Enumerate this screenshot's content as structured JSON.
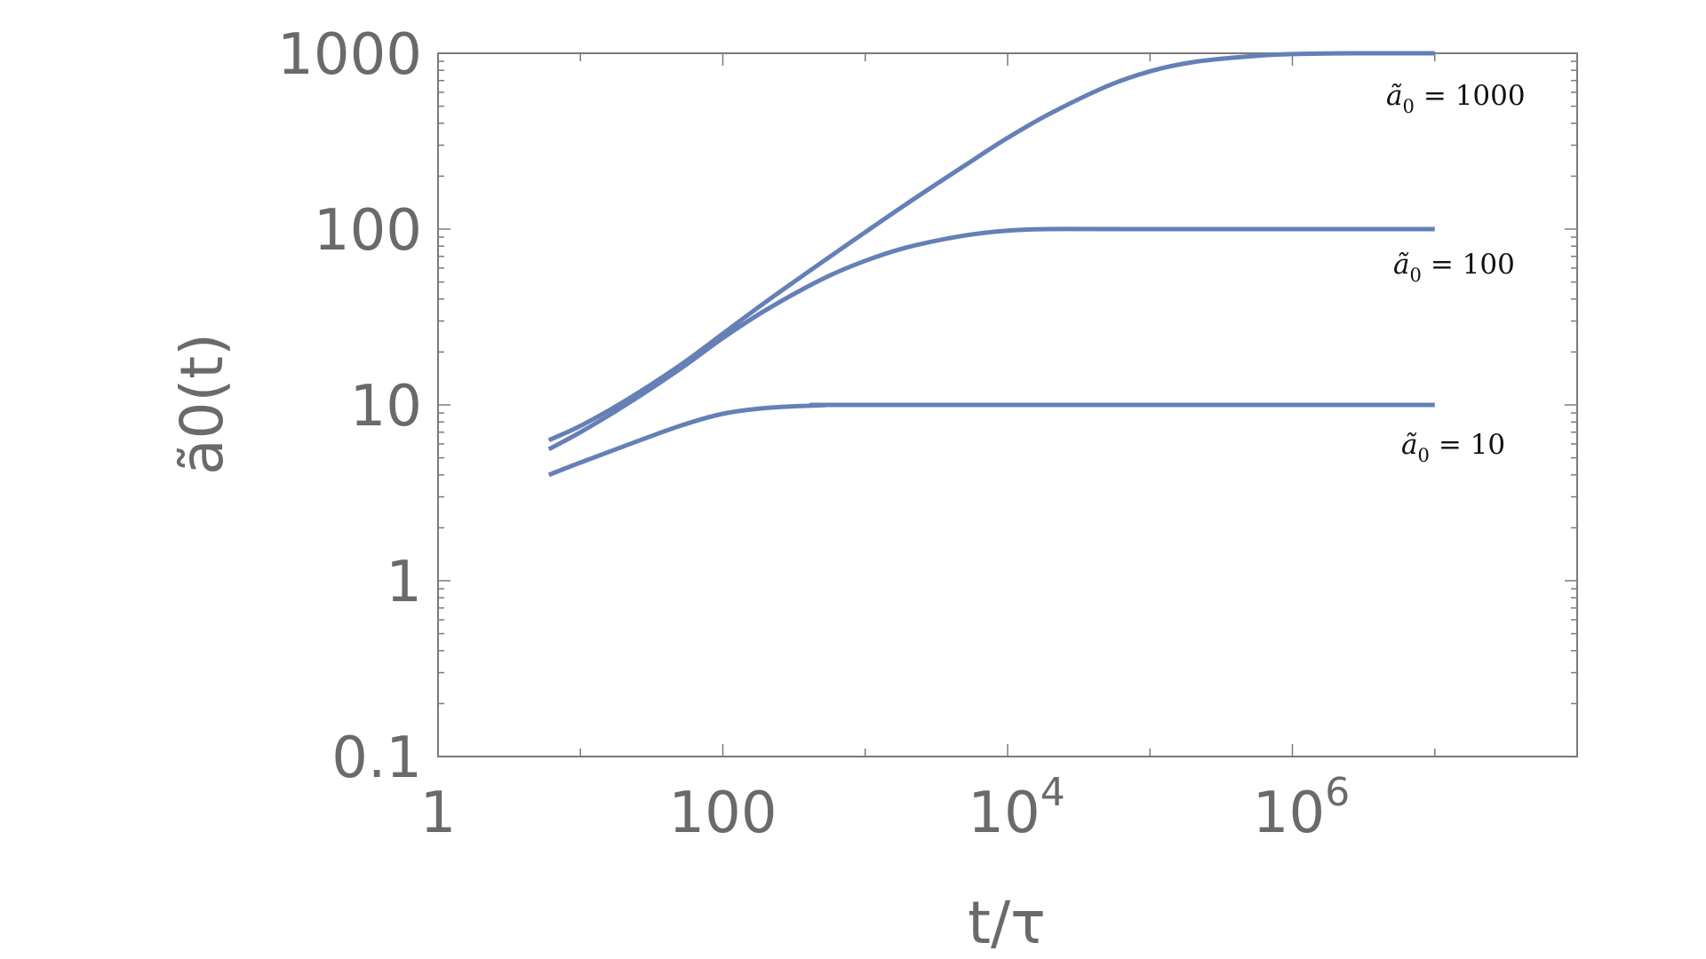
{
  "chart_data": {
    "type": "line",
    "title": "",
    "xlabel": "t/τ",
    "ylabel": "ã0(t)",
    "x_scale": "log",
    "y_scale": "log",
    "xlim": [
      1,
      100000000
    ],
    "ylim": [
      0.1,
      1000
    ],
    "grid": false,
    "legend": "none",
    "line_color": "#6480b6",
    "x_ticks": [
      {
        "value": 1,
        "label": "1"
      },
      {
        "value": 100,
        "label": "100"
      },
      {
        "value": 10000,
        "label": "10",
        "sup": "4"
      },
      {
        "value": 1000000,
        "label": "10",
        "sup": "6"
      }
    ],
    "y_ticks": [
      {
        "value": 0.1,
        "label": "0.1"
      },
      {
        "value": 1,
        "label": "1"
      },
      {
        "value": 10,
        "label": "10"
      },
      {
        "value": 100,
        "label": "100"
      },
      {
        "value": 1000,
        "label": "1000"
      }
    ],
    "series": [
      {
        "label": "ã0 = 1000",
        "label_text": "= 1000",
        "points": [
          [
            6,
            6.3
          ],
          [
            10,
            7.6
          ],
          [
            20,
            10.4
          ],
          [
            50,
            16.8
          ],
          [
            100,
            25.4
          ],
          [
            200,
            38.5
          ],
          [
            500,
            65
          ],
          [
            1000,
            96
          ],
          [
            2000,
            141
          ],
          [
            5000,
            230
          ],
          [
            10000,
            330
          ],
          [
            20000,
            455
          ],
          [
            50000,
            650
          ],
          [
            100000,
            790
          ],
          [
            200000,
            890
          ],
          [
            500000,
            960
          ],
          [
            1000000,
            990
          ],
          [
            3000000,
            1000
          ],
          [
            10000000,
            1000
          ]
        ]
      },
      {
        "label": "ã0 = 100",
        "label_text": "= 100",
        "points": [
          [
            6,
            5.6
          ],
          [
            10,
            7.0
          ],
          [
            20,
            9.8
          ],
          [
            50,
            16.0
          ],
          [
            100,
            24.0
          ],
          [
            200,
            34.6
          ],
          [
            500,
            52
          ],
          [
            1000,
            66
          ],
          [
            2000,
            79
          ],
          [
            5000,
            92
          ],
          [
            10000,
            98
          ],
          [
            20000,
            100
          ],
          [
            100000,
            100
          ],
          [
            10000000,
            100
          ]
        ]
      },
      {
        "label": "ã0 = 10",
        "label_text": "= 10",
        "points": [
          [
            6,
            4.0
          ],
          [
            10,
            4.7
          ],
          [
            20,
            5.8
          ],
          [
            50,
            7.6
          ],
          [
            100,
            8.9
          ],
          [
            200,
            9.6
          ],
          [
            500,
            9.95
          ],
          [
            1000,
            10
          ],
          [
            10000000,
            10
          ]
        ]
      }
    ]
  }
}
